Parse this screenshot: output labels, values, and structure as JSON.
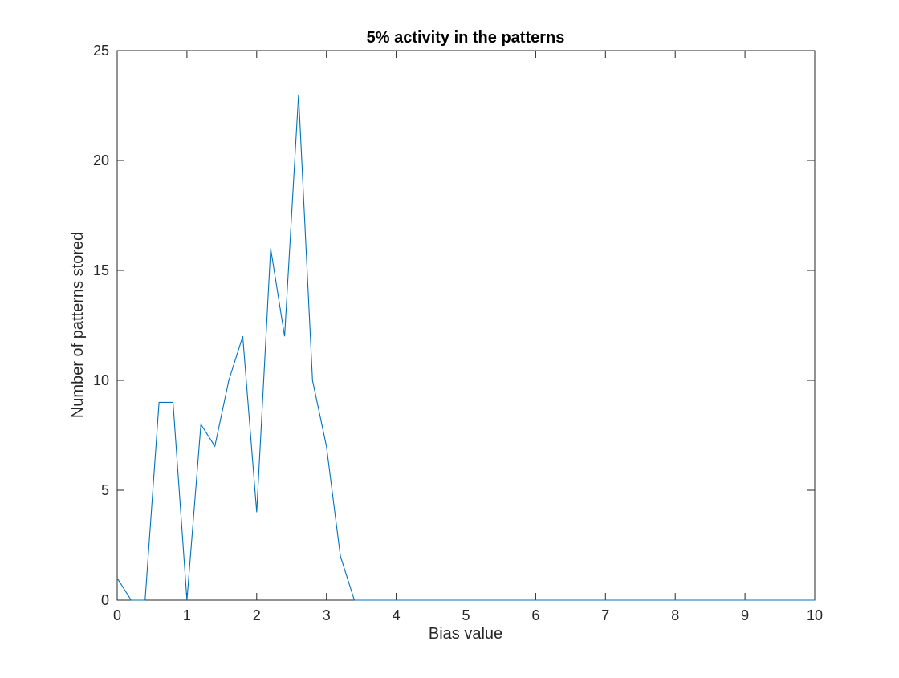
{
  "chart_data": {
    "type": "line",
    "title": "5% activity in the patterns",
    "xlabel": "Bias value",
    "ylabel": "Number of patterns stored",
    "xlim": [
      0,
      10
    ],
    "ylim": [
      0,
      25
    ],
    "xticks": [
      0,
      1,
      2,
      3,
      4,
      5,
      6,
      7,
      8,
      9,
      10
    ],
    "yticks": [
      0,
      5,
      10,
      15,
      20,
      25
    ],
    "grid": false,
    "series": [
      {
        "color": "#0072bd",
        "x": [
          0,
          0.2,
          0.4,
          0.6,
          0.8,
          1.0,
          1.2,
          1.4,
          1.6,
          1.8,
          2.0,
          2.2,
          2.4,
          2.6,
          2.8,
          3.0,
          3.2,
          3.4,
          3.6,
          3.8,
          4.0,
          4.2,
          4.4,
          4.6,
          4.8,
          5.0,
          5.2,
          5.4,
          5.6,
          5.8,
          6.0,
          6.2,
          6.4,
          6.6,
          6.8,
          7.0,
          7.2,
          7.4,
          7.6,
          7.8,
          8.0,
          8.2,
          8.4,
          8.6,
          8.8,
          9.0,
          9.2,
          9.4,
          9.6,
          9.8,
          10.0
        ],
        "y": [
          1,
          0,
          0,
          9,
          9,
          0,
          8,
          7,
          10,
          12,
          4,
          16,
          12,
          23,
          10,
          7,
          2,
          0,
          0,
          0,
          0,
          0,
          0,
          0,
          0,
          0,
          0,
          0,
          0,
          0,
          0,
          0,
          0,
          0,
          0,
          0,
          0,
          0,
          0,
          0,
          0,
          0,
          0,
          0,
          0,
          0,
          0,
          0,
          0,
          0,
          0
        ]
      }
    ]
  }
}
